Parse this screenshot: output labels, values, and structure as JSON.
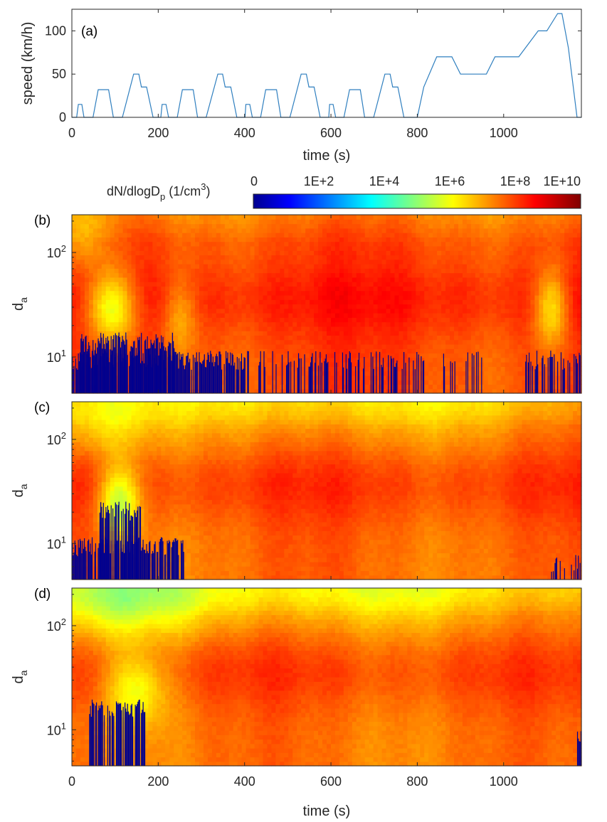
{
  "chart_data": [
    {
      "type": "line",
      "panel": "(a)",
      "xlabel": "time (s)",
      "ylabel": "speed (km/h)",
      "xlim": [
        0,
        1180
      ],
      "ylim": [
        0,
        125
      ],
      "x_ticks": [
        0,
        200,
        400,
        600,
        800,
        1000
      ],
      "y_ticks": [
        0,
        50,
        100
      ],
      "series": [
        {
          "color": "#2f7fbf",
          "points": [
            [
              0,
              0
            ],
            [
              11,
              0
            ],
            [
              15,
              15
            ],
            [
              23,
              15
            ],
            [
              28,
              0
            ],
            [
              49,
              0
            ],
            [
              61,
              32
            ],
            [
              85,
              32
            ],
            [
              96,
              0
            ],
            [
              117,
              0
            ],
            [
              143,
              50
            ],
            [
              155,
              50
            ],
            [
              161,
              35
            ],
            [
              173,
              35
            ],
            [
              188,
              0
            ],
            [
              206,
              0
            ],
            [
              209,
              15
            ],
            [
              218,
              15
            ],
            [
              224,
              0
            ],
            [
              244,
              0
            ],
            [
              256,
              32
            ],
            [
              281,
              32
            ],
            [
              291,
              0
            ],
            [
              311,
              0
            ],
            [
              338,
              50
            ],
            [
              349,
              50
            ],
            [
              355,
              35
            ],
            [
              368,
              35
            ],
            [
              382,
              0
            ],
            [
              401,
              0
            ],
            [
              403,
              15
            ],
            [
              412,
              15
            ],
            [
              418,
              0
            ],
            [
              437,
              0
            ],
            [
              449,
              32
            ],
            [
              474,
              32
            ],
            [
              484,
              0
            ],
            [
              505,
              0
            ],
            [
              531,
              50
            ],
            [
              543,
              50
            ],
            [
              549,
              35
            ],
            [
              561,
              35
            ],
            [
              575,
              0
            ],
            [
              595,
              0
            ],
            [
              597,
              15
            ],
            [
              605,
              15
            ],
            [
              611,
              0
            ],
            [
              630,
              0
            ],
            [
              643,
              32
            ],
            [
              668,
              32
            ],
            [
              678,
              0
            ],
            [
              699,
              0
            ],
            [
              725,
              50
            ],
            [
              737,
              50
            ],
            [
              743,
              35
            ],
            [
              755,
              35
            ],
            [
              769,
              0
            ],
            [
              800,
              0
            ],
            [
              815,
              35
            ],
            [
              845,
              70
            ],
            [
              880,
              70
            ],
            [
              900,
              50
            ],
            [
              960,
              50
            ],
            [
              980,
              70
            ],
            [
              1035,
              70
            ],
            [
              1080,
              100
            ],
            [
              1100,
              100
            ],
            [
              1125,
              120
            ],
            [
              1135,
              120
            ],
            [
              1150,
              80
            ],
            [
              1170,
              0
            ],
            [
              1180,
              0
            ]
          ]
        }
      ]
    },
    {
      "type": "heatmap",
      "panel": "(b)",
      "ylabel": "d",
      "ylabel_sub": "a",
      "xlim": [
        0,
        1180
      ],
      "ylim": [
        4.5,
        230
      ],
      "yscale": "log",
      "y_ticks": [
        10,
        100
      ],
      "y_tick_labels": [
        [
          "10",
          "1"
        ],
        [
          "10",
          "2"
        ]
      ],
      "z_scale": "log10",
      "low_bands": [
        [
          0,
          410,
          10,
          0.9
        ],
        [
          20,
          240,
          15,
          0.85
        ],
        [
          420,
          820,
          10,
          0.35
        ],
        [
          860,
          950,
          10,
          0.2
        ],
        [
          1050,
          1180,
          10,
          0.55
        ]
      ],
      "base_level": 8.0,
      "light_plumes": [
        [
          90,
          60,
          30,
          2.5
        ],
        [
          250,
          40,
          25,
          1.0
        ],
        [
          1110,
          40,
          30,
          1.8
        ],
        [
          30,
          60,
          150,
          1.2
        ]
      ]
    },
    {
      "type": "heatmap",
      "panel": "(c)",
      "ylabel": "d",
      "ylabel_sub": "a",
      "xlim": [
        0,
        1180
      ],
      "ylim": [
        4.5,
        230
      ],
      "yscale": "log",
      "y_ticks": [
        10,
        100
      ],
      "y_tick_labels": [
        [
          "10",
          "1"
        ],
        [
          "10",
          "2"
        ]
      ],
      "z_scale": "log10",
      "low_bands": [
        [
          0,
          260,
          10,
          0.85
        ],
        [
          60,
          160,
          22,
          0.7
        ],
        [
          1110,
          1180,
          7,
          0.5
        ]
      ],
      "base_level": 7.7,
      "light_plumes": [
        [
          110,
          50,
          25,
          2.4
        ],
        [
          60,
          120,
          150,
          1.0
        ],
        [
          600,
          600,
          200,
          0.8
        ]
      ]
    },
    {
      "type": "heatmap",
      "panel": "(d)",
      "ylabel": "d",
      "ylabel_sub": "a",
      "xlim": [
        0,
        1180
      ],
      "ylim": [
        4.5,
        230
      ],
      "yscale": "log",
      "y_ticks": [
        10,
        100
      ],
      "y_tick_labels": [
        [
          "10",
          "1"
        ],
        [
          "10",
          "2"
        ]
      ],
      "z_scale": "log10",
      "low_bands": [
        [
          40,
          170,
          17,
          0.85
        ],
        [
          1170,
          1180,
          10,
          1.0
        ]
      ],
      "base_level": 7.6,
      "light_plumes": [
        [
          150,
          70,
          25,
          1.6
        ],
        [
          100,
          200,
          170,
          1.3
        ],
        [
          600,
          700,
          200,
          1.0
        ]
      ]
    }
  ],
  "shared_x": {
    "xlabel": "time (s)",
    "x_ticks": [
      0,
      200,
      400,
      600,
      800,
      1000
    ]
  },
  "colorbar": {
    "label_main": "dN/dlogD",
    "label_sub": "p",
    "label_unit": " (1/cm",
    "label_sup": "3",
    "label_close": ")",
    "tick_labels": [
      "0",
      "1E+2",
      "1E+4",
      "1E+6",
      "1E+8",
      "1E+10"
    ],
    "colormap": "jet",
    "range": [
      0,
      10
    ]
  }
}
